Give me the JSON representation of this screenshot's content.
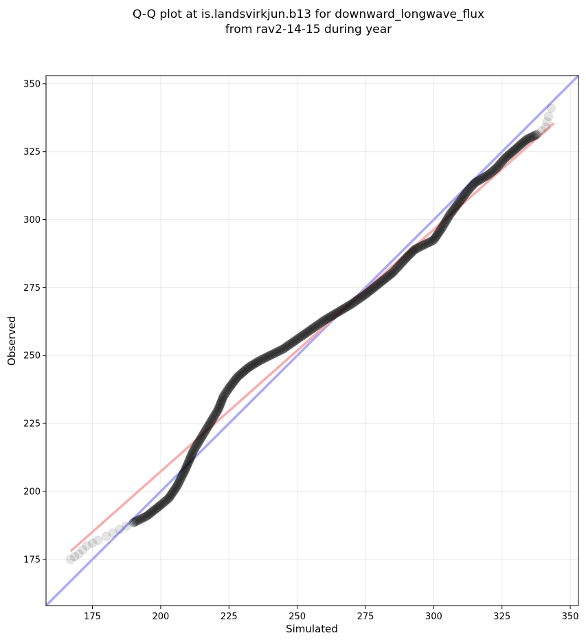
{
  "chart_data": {
    "type": "scatter",
    "title_line1": "Q-Q plot at is.landsvirkjun.b13 for downward_longwave_flux",
    "title_line2": "from rav2-14-15 during year",
    "xlabel": "Simulated",
    "ylabel": "Observed",
    "xlim": [
      158,
      353
    ],
    "ylim": [
      158,
      353
    ],
    "xticks": [
      175,
      200,
      225,
      250,
      275,
      300,
      325,
      350
    ],
    "yticks": [
      175,
      200,
      225,
      250,
      275,
      300,
      325,
      350
    ],
    "grid": true,
    "colors": {
      "points": "#000000",
      "identity_line": "#aaaaf5",
      "fit_line": "#f5aaaa"
    },
    "qq_curve": [
      [
        167,
        175
      ],
      [
        170,
        177
      ],
      [
        173,
        180
      ],
      [
        177,
        182
      ],
      [
        180,
        183.5
      ],
      [
        185,
        186
      ],
      [
        190,
        188.5
      ],
      [
        195,
        191
      ],
      [
        200,
        195
      ],
      [
        203,
        197.5
      ],
      [
        206,
        202
      ],
      [
        209,
        208
      ],
      [
        212,
        215
      ],
      [
        215,
        220
      ],
      [
        218,
        225
      ],
      [
        221,
        230
      ],
      [
        223,
        235
      ],
      [
        225,
        238
      ],
      [
        228,
        242
      ],
      [
        232,
        245.5
      ],
      [
        236,
        248
      ],
      [
        240,
        250
      ],
      [
        245,
        252.5
      ],
      [
        250,
        256
      ],
      [
        255,
        259.5
      ],
      [
        260,
        263
      ],
      [
        265,
        266
      ],
      [
        270,
        269
      ],
      [
        275,
        272.5
      ],
      [
        280,
        276.5
      ],
      [
        285,
        280.5
      ],
      [
        290,
        286
      ],
      [
        293,
        289
      ],
      [
        296,
        290.5
      ],
      [
        300,
        292.5
      ],
      [
        303,
        297
      ],
      [
        306,
        302
      ],
      [
        309,
        306
      ],
      [
        312,
        310
      ],
      [
        315,
        313.5
      ],
      [
        320,
        316.5
      ],
      [
        323,
        319
      ],
      [
        326,
        322.5
      ],
      [
        330,
        326
      ],
      [
        334,
        329.5
      ],
      [
        338,
        331.5
      ],
      [
        341,
        334
      ],
      [
        342,
        338
      ],
      [
        343,
        341
      ]
    ],
    "identity_line": [
      [
        158,
        158
      ],
      [
        353,
        353
      ]
    ],
    "fit_line": [
      [
        167,
        178
      ],
      [
        344,
        335.5
      ]
    ]
  }
}
